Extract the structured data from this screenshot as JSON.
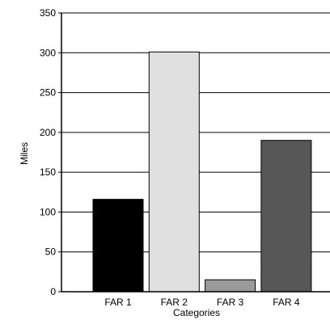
{
  "chart_data": {
    "type": "bar",
    "categories": [
      "FAR 1",
      "FAR 2",
      "FAR 3",
      "FAR 4"
    ],
    "values": [
      116,
      301,
      15,
      190
    ],
    "colors": [
      "#000000",
      "#e0e0e0",
      "#9a9a9a",
      "#575757"
    ],
    "title": "",
    "xlabel": "Categories",
    "ylabel": "Miles",
    "ylim": [
      0,
      350
    ],
    "yticks": [
      0,
      50,
      100,
      150,
      200,
      250,
      300,
      350
    ],
    "grid": true
  }
}
